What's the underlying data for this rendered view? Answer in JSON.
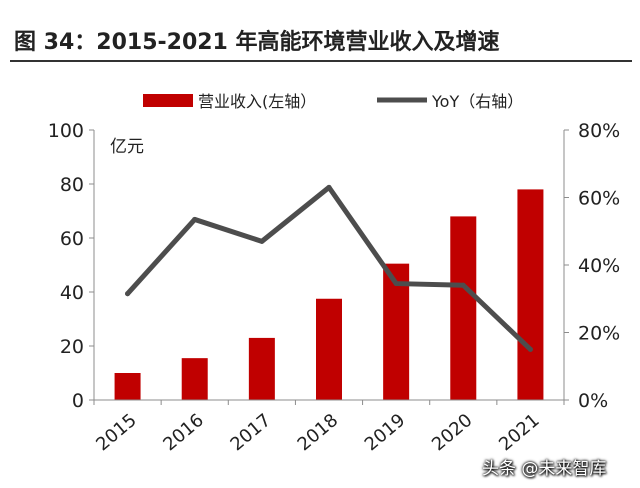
{
  "header": {
    "title": "图 34：2015-2021 年高能环境营业收入及增速"
  },
  "chart_data": {
    "type": "bar",
    "categories": [
      "2015",
      "2016",
      "2017",
      "2018",
      "2019",
      "2020",
      "2021"
    ],
    "series": [
      {
        "name": "营业收入(左轴）",
        "type": "bar",
        "axis": "left",
        "color": "#c00000",
        "values": [
          10,
          15.5,
          23,
          37.5,
          50.5,
          68,
          78
        ]
      },
      {
        "name": "YoY（右轴）",
        "type": "line",
        "axis": "right",
        "color": "#4d4d4d",
        "values": [
          0.315,
          0.535,
          0.47,
          0.63,
          0.345,
          0.34,
          0.15
        ]
      }
    ],
    "left_axis": {
      "unit_label": "亿元",
      "ylim": [
        0,
        100
      ],
      "ticks": [
        "0",
        "20",
        "40",
        "60",
        "80",
        "100"
      ]
    },
    "right_axis": {
      "ylim": [
        0,
        0.8
      ],
      "ticks": [
        "0%",
        "20%",
        "40%",
        "60%",
        "80%"
      ]
    },
    "legend_position": "top",
    "grid": false
  },
  "watermark": "头条 @未来智库"
}
